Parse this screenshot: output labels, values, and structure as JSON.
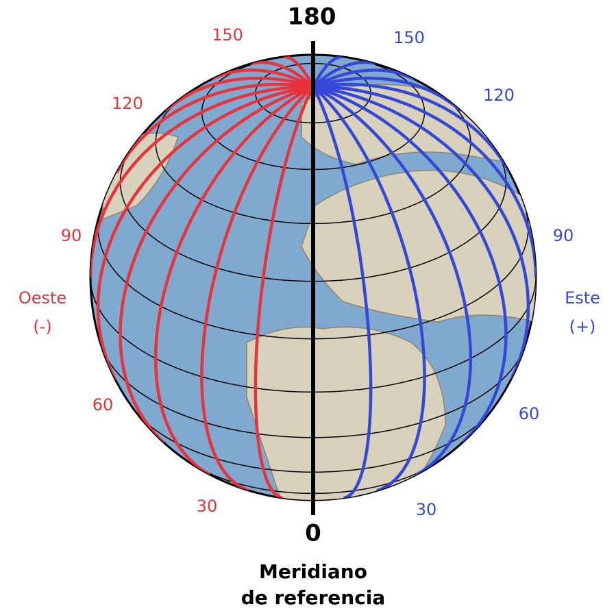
{
  "top_label": "180",
  "bottom_label": "0",
  "caption": [
    "Meridiano",
    "de referencia"
  ],
  "west": {
    "labels": [
      "150",
      "120",
      "90",
      "60",
      "30"
    ],
    "name": "Oeste",
    "sign": "(-)"
  },
  "east": {
    "labels": [
      "150",
      "120",
      "90",
      "60",
      "30"
    ],
    "name": "Este",
    "sign": "(+)"
  }
}
